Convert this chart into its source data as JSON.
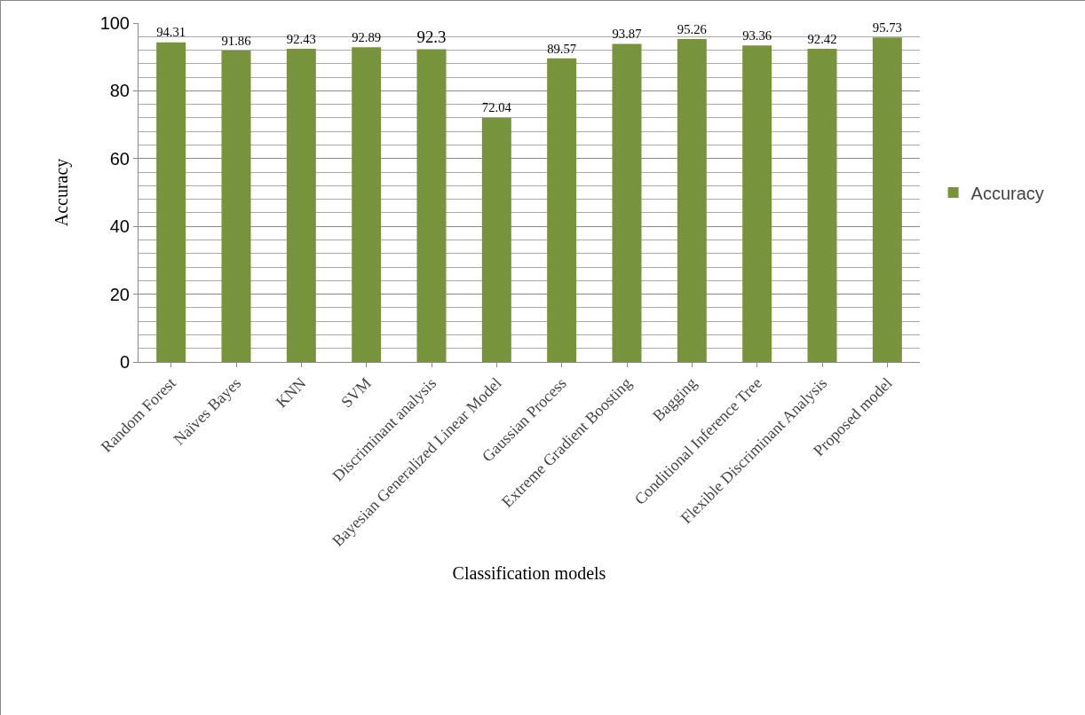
{
  "chart_data": {
    "type": "bar",
    "xlabel": "Classification models",
    "ylabel": "Accuracy",
    "categories": [
      "Random Forest",
      "Naïves Bayes",
      "KNN",
      "SVM",
      "Discriminant analysis",
      "Bayesian Generalized Linear Model",
      "Gaussian Process",
      "Extreme Gradient Boosting",
      "Bagging",
      "Conditional Inference Tree",
      "Flexible Discriminant Analysis",
      "Proposed model"
    ],
    "series": [
      {
        "name": "Accuracy",
        "color": "#77933c",
        "values": [
          94.31,
          91.86,
          92.43,
          92.89,
          92.3,
          72.04,
          89.57,
          93.87,
          95.26,
          93.36,
          92.42,
          95.73
        ]
      }
    ],
    "ylim": [
      0,
      100
    ],
    "yticks": [
      0,
      20,
      40,
      60,
      80,
      100
    ],
    "grid": "y",
    "legend": "right",
    "data_labels": true
  }
}
